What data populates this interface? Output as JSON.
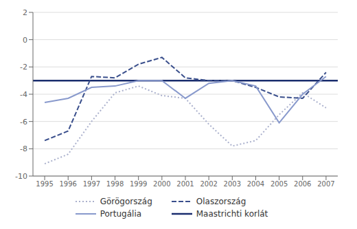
{
  "chart_data": {
    "type": "line",
    "x": [
      1995,
      1996,
      1997,
      1998,
      1999,
      2000,
      2001,
      2002,
      2003,
      2004,
      2005,
      2006,
      2007
    ],
    "series": [
      {
        "name": "Görögország",
        "color": "#aab0cc",
        "line_style": "dotted",
        "values": [
          -9.1,
          -8.4,
          -6.0,
          -3.9,
          -3.4,
          -4.1,
          -4.3,
          -6.2,
          -7.8,
          -7.4,
          -5.5,
          -3.9,
          -5.0
        ]
      },
      {
        "name": "Olaszország",
        "color": "#3a4f8c",
        "line_style": "dashed",
        "values": [
          -7.4,
          -6.7,
          -2.7,
          -2.8,
          -1.8,
          -1.3,
          -2.8,
          -3.0,
          -3.0,
          -3.5,
          -4.2,
          -4.3,
          -2.4
        ]
      },
      {
        "name": "Portugália",
        "color": "#8899cc",
        "line_style": "solid",
        "values": [
          -4.6,
          -4.3,
          -3.5,
          -3.4,
          -3.0,
          -3.0,
          -4.3,
          -3.2,
          -3.0,
          -3.4,
          -6.1,
          -4.0,
          -2.7
        ]
      }
    ],
    "hlines": [
      {
        "name": "Maastrichti korlát",
        "color": "#1a2d6e",
        "value": -3.0
      }
    ],
    "xlim": [
      1994.5,
      2007.5
    ],
    "xticks": [
      1995,
      1996,
      1997,
      1998,
      1999,
      2000,
      2001,
      2002,
      2003,
      2004,
      2005,
      2006,
      2007
    ],
    "ylim": [
      -10,
      2
    ],
    "yticks": [
      -10,
      -8,
      -6,
      -4,
      -2,
      0,
      2
    ],
    "grid": "y",
    "legend": "bottom"
  }
}
